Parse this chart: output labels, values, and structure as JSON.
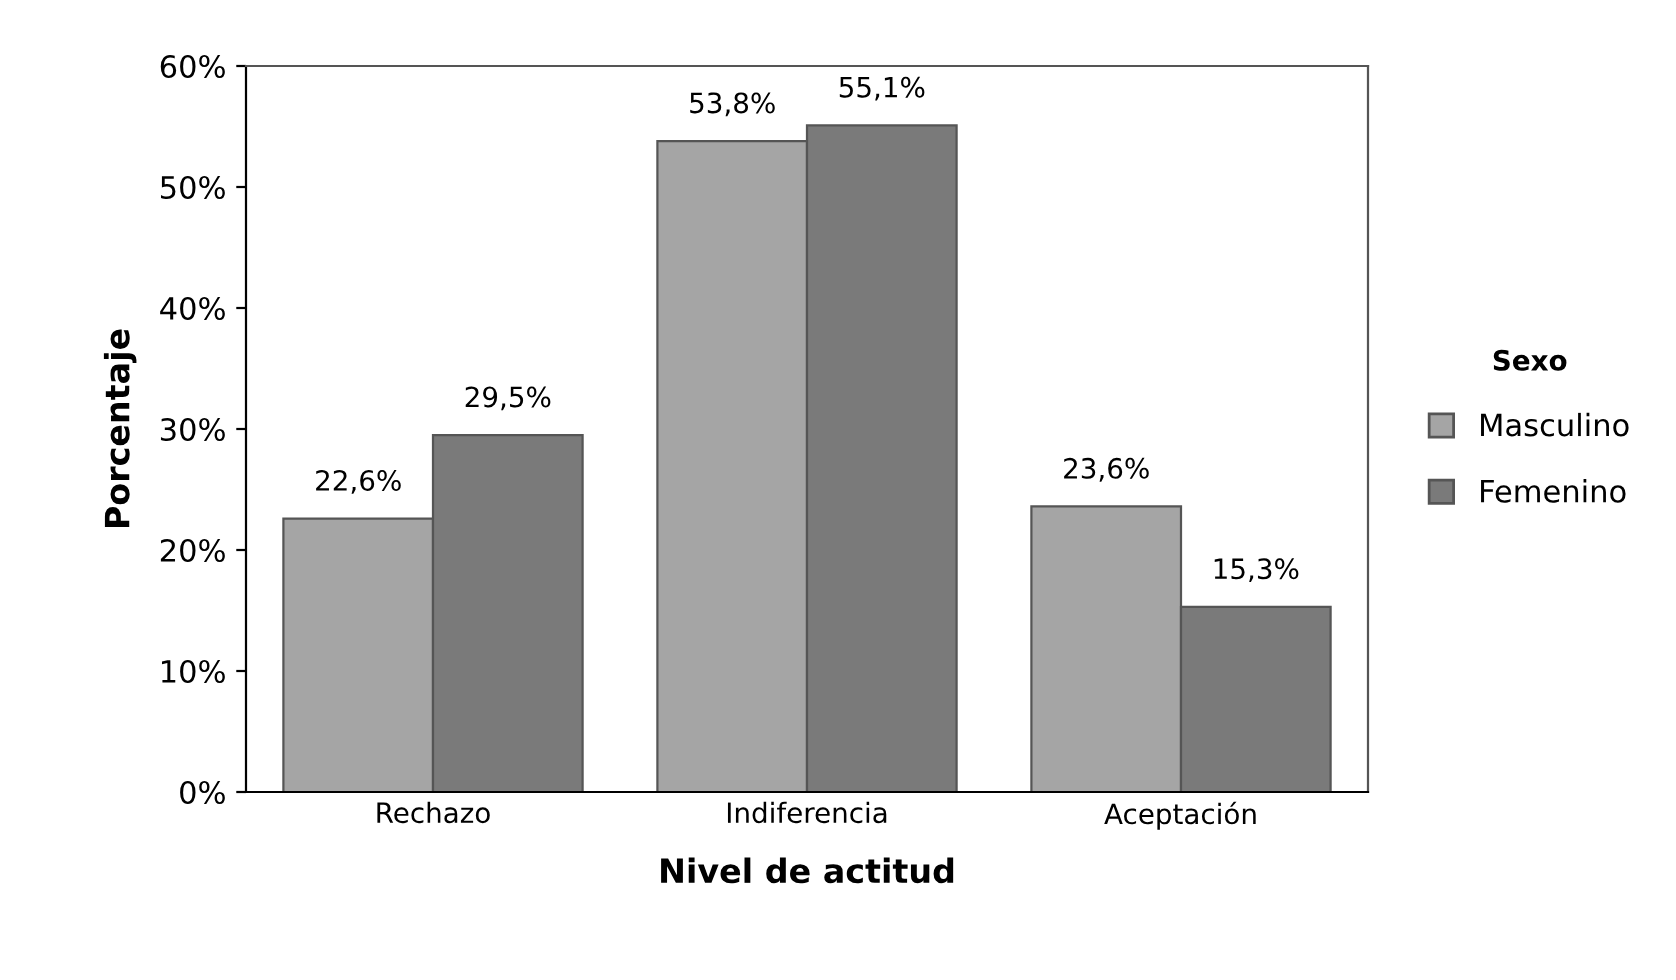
{
  "chart_data": {
    "type": "bar",
    "xlabel": "Nivel de actitud",
    "ylabel": "Porcentaje",
    "legend_title": "Sexo",
    "legend": "right",
    "grid": false,
    "categories": [
      "Rechazo",
      "Indiferencia",
      "Aceptación"
    ],
    "ylim": [
      0,
      60
    ],
    "yticks": [
      {
        "value": 0,
        "label": "0%"
      },
      {
        "value": 10,
        "label": "10%"
      },
      {
        "value": 20,
        "label": "20%"
      },
      {
        "value": 30,
        "label": "30%"
      },
      {
        "value": 40,
        "label": "40%"
      },
      {
        "value": 50,
        "label": "50%"
      },
      {
        "value": 60,
        "label": "60%"
      }
    ],
    "series": [
      {
        "name": "Masculino",
        "color": "#a5a5a5",
        "values": [
          22.6,
          53.8,
          23.6
        ],
        "value_labels": [
          "22,6%",
          "53,8%",
          "23,6%"
        ]
      },
      {
        "name": "Femenino",
        "color": "#7a7a7a",
        "values": [
          29.5,
          55.1,
          15.3
        ],
        "value_labels": [
          "29,5%",
          "55,1%",
          "15,3%"
        ]
      }
    ]
  }
}
